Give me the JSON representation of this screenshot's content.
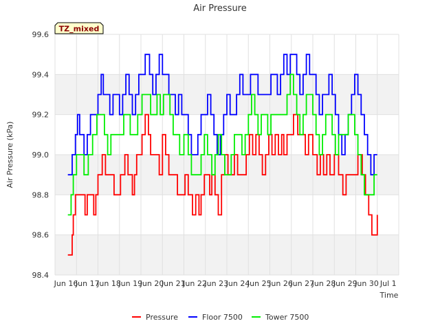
{
  "chart_data": {
    "type": "line",
    "title": "Air Pressure",
    "xlabel": "Time",
    "ylabel": "Air Pressure (kPa)",
    "ylim": [
      98.4,
      99.6
    ],
    "xlim": [
      15.0,
      31.0
    ],
    "yticks": [
      98.4,
      98.6,
      98.8,
      99.0,
      99.2,
      99.4,
      99.6
    ],
    "ytick_labels": [
      "98.4",
      "98.6",
      "98.8",
      "99.0",
      "99.2",
      "99.4",
      "99.6"
    ],
    "xticks": [
      15,
      16,
      17,
      18,
      19,
      20,
      21,
      22,
      23,
      24,
      25,
      26,
      27,
      28,
      29,
      30,
      31
    ],
    "xtick_labels": [
      "Jun 16",
      "Jun 17",
      "Jun 18",
      "Jun 19",
      "Jun 20",
      "Jun 21",
      "Jun 22",
      "Jun 23",
      "Jun 24",
      "Jun 25",
      "Jun 26",
      "Jun 27",
      "Jun 28",
      "Jun 29",
      "Jun 30",
      "Jul 1",
      ""
    ],
    "xtick_display": [
      "Jun 16",
      "Jun 17",
      "Jun 18",
      "Jun 19",
      "Jun 20",
      "Jun 21",
      "Jun 22",
      "Jun 23",
      "Jun 24",
      "Jun 25",
      "Jun 26",
      "Jun 27",
      "Jun 28",
      "Jun 29",
      "Jun 30",
      "Jul 1"
    ],
    "grid": true,
    "legend_position": "bottom",
    "annotation": "TZ_mixed",
    "series": [
      {
        "name": "Pressure",
        "color": "#ff0000",
        "x": [
          15.6,
          15.75,
          15.8,
          15.85,
          15.95,
          16.1,
          16.3,
          16.4,
          16.5,
          16.6,
          16.8,
          16.9,
          17.0,
          17.2,
          17.35,
          17.5,
          17.6,
          17.75,
          18.05,
          18.25,
          18.4,
          18.6,
          18.7,
          18.8,
          18.95,
          19.05,
          19.2,
          19.35,
          19.45,
          19.6,
          19.75,
          19.85,
          20.0,
          20.15,
          20.3,
          20.4,
          20.55,
          20.7,
          20.9,
          21.05,
          21.2,
          21.4,
          21.55,
          21.7,
          21.8,
          21.95,
          22.1,
          22.2,
          22.3,
          22.45,
          22.6,
          22.75,
          22.9,
          23.05,
          23.2,
          23.35,
          23.5,
          23.7,
          23.9,
          24.05,
          24.2,
          24.35,
          24.5,
          24.65,
          24.8,
          24.95,
          25.1,
          25.25,
          25.4,
          25.55,
          25.65,
          25.8,
          25.95,
          26.1,
          26.3,
          26.5,
          26.65,
          26.8,
          27.0,
          27.2,
          27.35,
          27.5,
          27.65,
          27.8,
          28.0,
          28.2,
          28.4,
          28.55,
          28.7,
          28.9,
          29.1,
          29.3,
          29.45,
          29.6,
          29.75,
          29.85,
          30.0
        ],
        "y": [
          98.5,
          98.5,
          98.6,
          98.7,
          98.8,
          98.8,
          98.8,
          98.7,
          98.8,
          98.8,
          98.7,
          98.8,
          98.9,
          99.0,
          98.9,
          98.9,
          98.9,
          98.8,
          98.9,
          99.0,
          98.9,
          98.8,
          98.9,
          99.0,
          99.0,
          99.1,
          99.2,
          99.1,
          99.0,
          99.0,
          99.0,
          98.9,
          99.1,
          99.0,
          98.9,
          98.9,
          98.9,
          98.8,
          98.8,
          98.9,
          98.8,
          98.7,
          98.8,
          98.7,
          98.8,
          98.9,
          98.9,
          98.8,
          98.9,
          98.8,
          98.7,
          98.9,
          99.0,
          98.9,
          98.9,
          99.0,
          98.9,
          98.9,
          99.0,
          99.1,
          99.0,
          99.1,
          99.0,
          98.9,
          99.0,
          99.1,
          99.0,
          99.1,
          99.0,
          99.1,
          99.0,
          99.1,
          99.1,
          99.2,
          99.1,
          99.1,
          99.0,
          99.1,
          99.0,
          98.9,
          99.0,
          98.9,
          99.0,
          98.9,
          99.0,
          98.9,
          98.8,
          98.9,
          98.9,
          98.9,
          99.0,
          98.9,
          98.8,
          98.7,
          98.6,
          98.6,
          98.7
        ]
      },
      {
        "name": "Floor 7500",
        "color": "#0000ff",
        "x": [
          15.6,
          15.8,
          15.95,
          16.05,
          16.15,
          16.25,
          16.35,
          16.5,
          16.65,
          16.8,
          17.0,
          17.15,
          17.25,
          17.4,
          17.55,
          17.7,
          17.85,
          18.0,
          18.15,
          18.3,
          18.45,
          18.6,
          18.75,
          18.9,
          19.05,
          19.2,
          19.4,
          19.55,
          19.7,
          19.85,
          20.0,
          20.15,
          20.3,
          20.45,
          20.6,
          20.75,
          20.9,
          21.05,
          21.2,
          21.35,
          21.5,
          21.65,
          21.8,
          21.95,
          22.1,
          22.25,
          22.4,
          22.55,
          22.7,
          22.85,
          23.0,
          23.15,
          23.3,
          23.45,
          23.6,
          23.75,
          23.9,
          24.1,
          24.3,
          24.45,
          24.6,
          24.75,
          24.9,
          25.05,
          25.2,
          25.35,
          25.5,
          25.65,
          25.8,
          25.95,
          26.1,
          26.25,
          26.4,
          26.55,
          26.7,
          26.85,
          27.0,
          27.15,
          27.3,
          27.45,
          27.6,
          27.75,
          27.9,
          28.05,
          28.2,
          28.35,
          28.5,
          28.65,
          28.8,
          28.95,
          29.1,
          29.25,
          29.4,
          29.55,
          29.7,
          29.85,
          30.0
        ],
        "y": [
          98.9,
          99.0,
          99.1,
          99.2,
          99.1,
          99.1,
          99.0,
          99.1,
          99.2,
          99.2,
          99.3,
          99.4,
          99.3,
          99.3,
          99.2,
          99.3,
          99.3,
          99.2,
          99.3,
          99.4,
          99.3,
          99.2,
          99.3,
          99.4,
          99.4,
          99.5,
          99.4,
          99.3,
          99.4,
          99.5,
          99.4,
          99.4,
          99.3,
          99.3,
          99.2,
          99.3,
          99.2,
          99.2,
          99.1,
          99.0,
          99.0,
          99.1,
          99.2,
          99.2,
          99.3,
          99.2,
          99.1,
          99.0,
          99.1,
          99.2,
          99.3,
          99.2,
          99.2,
          99.3,
          99.4,
          99.3,
          99.3,
          99.4,
          99.4,
          99.3,
          99.3,
          99.3,
          99.3,
          99.4,
          99.4,
          99.3,
          99.4,
          99.5,
          99.4,
          99.5,
          99.5,
          99.4,
          99.3,
          99.4,
          99.5,
          99.4,
          99.4,
          99.3,
          99.2,
          99.3,
          99.3,
          99.4,
          99.3,
          99.2,
          99.1,
          99.0,
          99.1,
          99.2,
          99.3,
          99.4,
          99.3,
          99.2,
          99.1,
          99.0,
          98.9,
          99.0,
          99.0
        ]
      },
      {
        "name": "Tower 7500",
        "color": "#00ee00",
        "x": [
          15.6,
          15.75,
          15.85,
          16.0,
          16.15,
          16.35,
          16.55,
          16.75,
          16.95,
          17.1,
          17.3,
          17.45,
          17.6,
          17.8,
          18.0,
          18.2,
          18.35,
          18.5,
          18.65,
          18.85,
          19.05,
          19.25,
          19.45,
          19.6,
          19.75,
          19.9,
          20.05,
          20.2,
          20.35,
          20.5,
          20.65,
          20.8,
          21.0,
          21.2,
          21.35,
          21.5,
          21.65,
          21.8,
          21.95,
          22.1,
          22.3,
          22.45,
          22.6,
          22.75,
          22.9,
          23.05,
          23.2,
          23.35,
          23.5,
          23.7,
          23.85,
          24.0,
          24.15,
          24.3,
          24.45,
          24.6,
          24.75,
          24.9,
          25.05,
          25.2,
          25.35,
          25.5,
          25.65,
          25.8,
          25.95,
          26.1,
          26.25,
          26.4,
          26.55,
          26.7,
          26.85,
          27.0,
          27.15,
          27.3,
          27.45,
          27.6,
          27.75,
          27.9,
          28.05,
          28.2,
          28.35,
          28.5,
          28.65,
          28.8,
          28.95,
          29.1,
          29.25,
          29.4,
          29.55,
          29.7,
          29.85,
          30.0
        ],
        "y": [
          98.7,
          98.8,
          98.9,
          99.0,
          99.0,
          98.9,
          99.0,
          99.1,
          99.2,
          99.2,
          99.1,
          99.0,
          99.1,
          99.1,
          99.1,
          99.2,
          99.2,
          99.1,
          99.1,
          99.2,
          99.3,
          99.3,
          99.2,
          99.2,
          99.3,
          99.2,
          99.3,
          99.3,
          99.2,
          99.1,
          99.1,
          99.0,
          99.1,
          99.0,
          98.9,
          98.9,
          98.9,
          99.0,
          99.1,
          99.0,
          98.9,
          99.0,
          99.1,
          99.0,
          98.9,
          98.9,
          99.0,
          99.1,
          99.1,
          99.0,
          99.1,
          99.2,
          99.3,
          99.2,
          99.1,
          99.2,
          99.2,
          99.1,
          99.2,
          99.2,
          99.2,
          99.2,
          99.2,
          99.3,
          99.4,
          99.3,
          99.2,
          99.1,
          99.2,
          99.3,
          99.3,
          99.2,
          99.1,
          99.0,
          99.1,
          99.2,
          99.2,
          99.1,
          99.0,
          99.1,
          99.1,
          99.1,
          99.2,
          99.2,
          99.1,
          99.0,
          98.9,
          98.8,
          98.8,
          98.8,
          98.9,
          98.9
        ]
      }
    ]
  }
}
